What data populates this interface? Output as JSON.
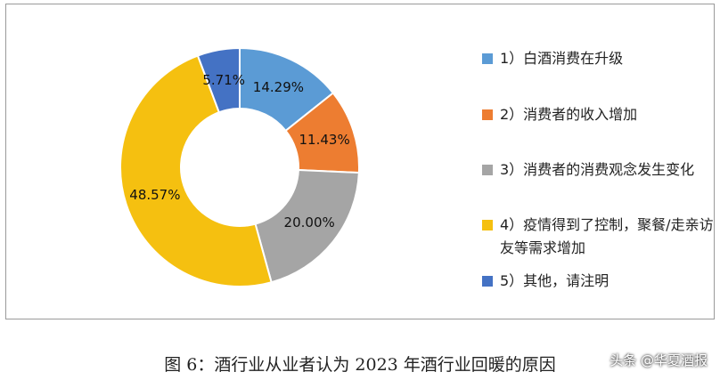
{
  "chart_data": {
    "type": "pie",
    "categories": [
      "1）白酒消费在升级",
      "2）消费者的收入增加",
      "3）消费者的消费观念发生变化",
      "4）疫情得到了控制，聚餐/走亲访友等需求增加",
      "5）其他，请注明"
    ],
    "values": [
      14.29,
      11.43,
      20.0,
      48.57,
      5.71
    ],
    "value_labels": [
      "14.29%",
      "11.43%",
      "20.00%",
      "48.57%",
      "5.71%"
    ],
    "colors": [
      "#5b9bd5",
      "#ed7d31",
      "#a5a5a5",
      "#f5c010",
      "#4472c4"
    ],
    "title": "",
    "legend_position": "right"
  },
  "caption": "图 6：酒行业从业者认为 2023 年酒行业回暖的原因",
  "watermark_tag": "头条 @华夏酒报"
}
